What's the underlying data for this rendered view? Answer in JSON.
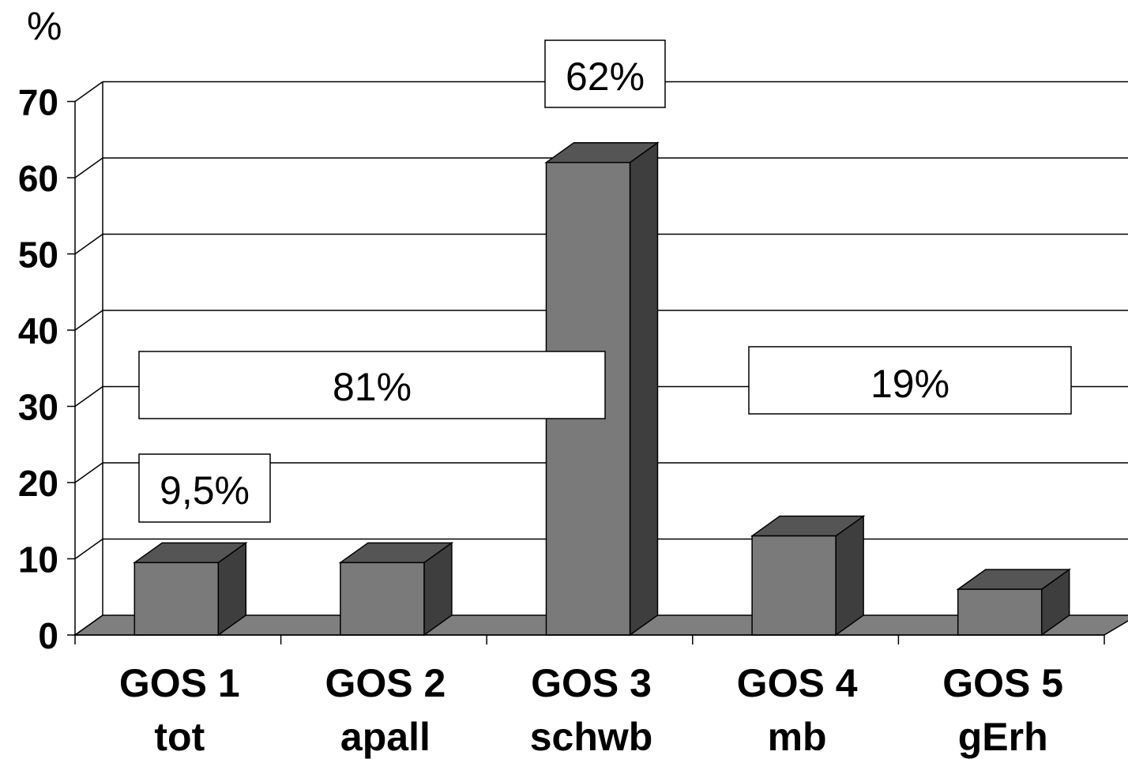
{
  "chart_data": {
    "type": "bar",
    "title": "",
    "xlabel": "",
    "ylabel": "%",
    "ylim": [
      0,
      70
    ],
    "yticks": [
      "0",
      "10",
      "20",
      "30",
      "40",
      "50",
      "60",
      "70"
    ],
    "categories": [
      {
        "line1": "GOS 1",
        "line2": "tot"
      },
      {
        "line1": "GOS 2",
        "line2": "apall"
      },
      {
        "line1": "GOS 3",
        "line2": "schwb"
      },
      {
        "line1": "GOS 4",
        "line2": "mb"
      },
      {
        "line1": "GOS 5",
        "line2": "gErh"
      }
    ],
    "values": [
      9.5,
      9.5,
      62,
      13,
      6
    ],
    "annotations": [
      "9,5%",
      "81%",
      "62%",
      "19%"
    ],
    "grid": true,
    "colors": {
      "bar_front": "#7a7a7a",
      "bar_side": "#3e3e3e",
      "bar_top": "#555555",
      "floor": "#7f7f7f",
      "grid": "#000000"
    }
  }
}
